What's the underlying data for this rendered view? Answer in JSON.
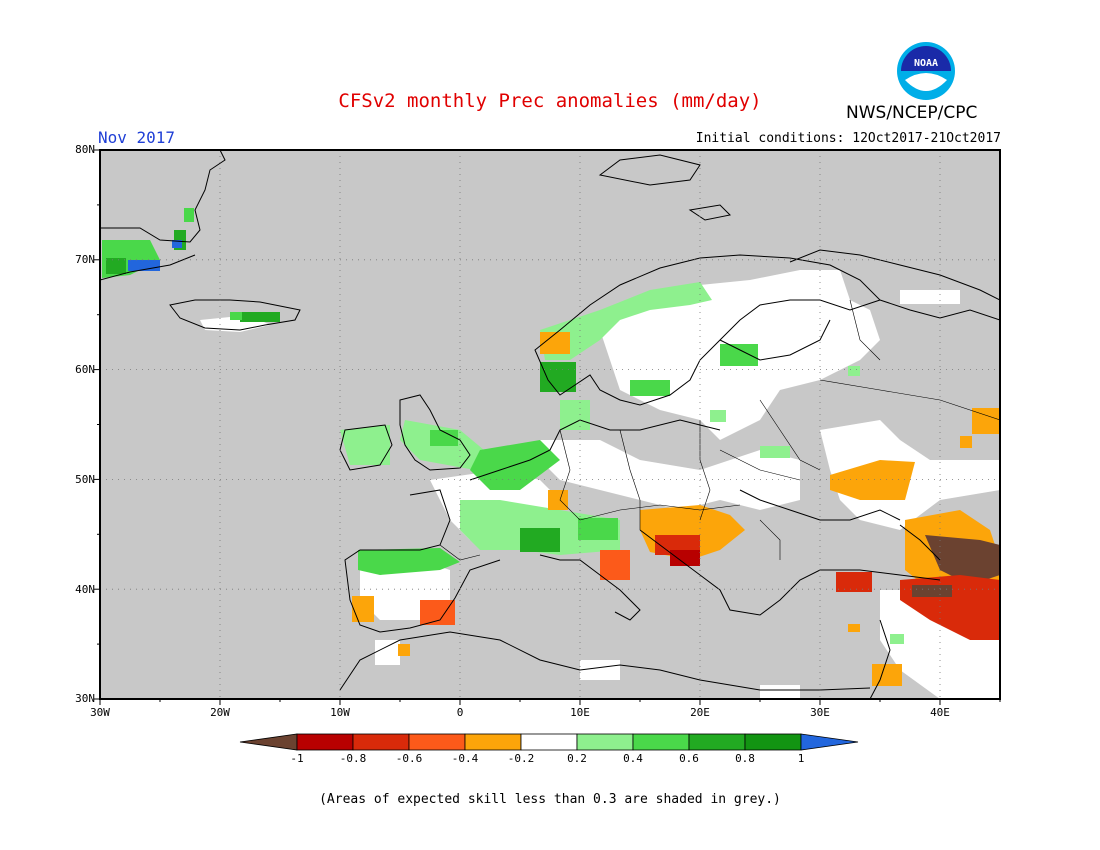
{
  "title": "CFSv2 monthly Prec anomalies (mm/day)",
  "agency": "NWS/NCEP/CPC",
  "logo_text": "NOAA",
  "month": "Nov 2017",
  "initial_conditions": "Initial conditions: 12Oct2017-21Oct2017",
  "footnote": "(Areas of expected skill less than 0.3 are shaded in grey.)",
  "map": {
    "lon_range": [
      -30,
      45
    ],
    "lat_range": [
      30,
      80
    ],
    "lat_ticks": [
      "80N",
      "70N",
      "60N",
      "50N",
      "40N",
      "30N"
    ],
    "lon_ticks": [
      "30W",
      "20W",
      "10W",
      "0",
      "10E",
      "20E",
      "30E",
      "40E"
    ],
    "grid": true,
    "low_skill_color": "#c8c8c8"
  },
  "colorbar": {
    "labels": [
      "-1",
      "-0.8",
      "-0.6",
      "-0.4",
      "-0.2",
      "0.2",
      "0.4",
      "0.6",
      "0.8",
      "1"
    ],
    "colors": [
      "#6b4230",
      "#b80000",
      "#d92a0a",
      "#fc5a1a",
      "#fca50a",
      "#ffffff",
      "#8ef08e",
      "#4ad84a",
      "#22aa22",
      "#129412",
      "#2266dd"
    ]
  },
  "regions": [
    {
      "name": "greenland-wet",
      "color": "#4ad84a"
    },
    {
      "name": "iceland-wet",
      "color": "#22aa22"
    },
    {
      "name": "scandinavia-wet",
      "color": "#8ef08e"
    },
    {
      "name": "uk-wet",
      "color": "#8ef08e"
    },
    {
      "name": "alps-wet",
      "color": "#22aa22"
    },
    {
      "name": "iberia-wet",
      "color": "#4ad84a"
    },
    {
      "name": "balkans-dry",
      "color": "#fca50a"
    },
    {
      "name": "balkans-very-dry",
      "color": "#b80000"
    },
    {
      "name": "caucasus-very-dry",
      "color": "#6b4230"
    },
    {
      "name": "turkey-east-dry",
      "color": "#d92a0a"
    },
    {
      "name": "ukraine-dry",
      "color": "#fca50a"
    },
    {
      "name": "spain-south-dry",
      "color": "#fca50a"
    }
  ]
}
